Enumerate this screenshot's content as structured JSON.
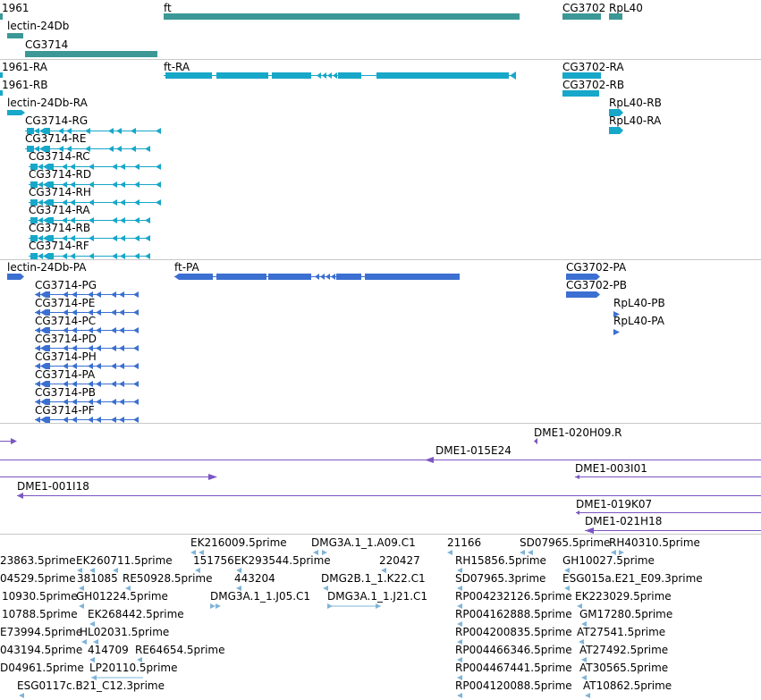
{
  "colors": {
    "gene": "#3b9896",
    "transcript": "#17a7c9",
    "protein": "#3b6fd1",
    "clone": "#7a56c2",
    "est": "#7fb4d8",
    "track_border": "#c8c8c8"
  },
  "tracks": {
    "genes": {
      "labels": [
        "1961",
        "lectin-24Db",
        "CG3714",
        "ft",
        "CG3702",
        "RpL40"
      ]
    },
    "transcripts": {
      "labels": [
        "1961-RA",
        "1961-RB",
        "lectin-24Db-RA",
        "CG3714-RG",
        "CG3714-RE",
        "CG3714-RC",
        "CG3714-RD",
        "CG3714-RH",
        "CG3714-RA",
        "CG3714-RB",
        "CG3714-RF",
        "ft-RA",
        "CG3702-RA",
        "CG3702-RB",
        "RpL40-RB",
        "RpL40-RA"
      ]
    },
    "proteins": {
      "labels": [
        "lectin-24Db-PA",
        "CG3714-PG",
        "CG3714-PE",
        "CG3714-PC",
        "CG3714-PD",
        "CG3714-PH",
        "CG3714-PA",
        "CG3714-PB",
        "CG3714-PF",
        "ft-PA",
        "CG3702-PA",
        "CG3702-PB",
        "RpL40-PB",
        "RpL40-PA"
      ]
    },
    "clones": {
      "labels": [
        "DME1-020H09.R",
        "DME1-015E24",
        "DME1-003I01",
        "DME1-001I18",
        "DME1-019K07",
        "DME1-021H18"
      ]
    },
    "ests": {
      "labels": [
        "EK216009.5prime",
        "DMG3A.1_1.A09.C1",
        "21166",
        "SD07965.5prime",
        "RH40310.5prime",
        "23863.5prime",
        "EK260711.5prime",
        "151756",
        "EK293544.5prime",
        "220427",
        "RH15856.5prime",
        "GH10027.5prime",
        "04529.5prime",
        "381085",
        "RE50928.5prime",
        "443204",
        "DMG2B.1_1.K22.C1",
        "SD07965.3prime",
        "ESG015a.E21_E09.3prime",
        "10930.5prime",
        "GH01224.5prime",
        "DMG3A.1_1.J05.C1",
        "DMG3A.1_1.J21.C1",
        "RP004232126.5prime",
        "EK223029.5prime",
        "10788.5prime",
        "EK268442.5prime",
        "RP004162888.5prime",
        "GM17280.5prime",
        "E73994.5prime",
        "HL02031.5prime",
        "RP004200835.5prime",
        "AT27541.5prime",
        "043194.5prime",
        "414709",
        "RE64654.5prime",
        "RP004466346.5prime",
        "AT27492.5prime",
        "D04961.5prime",
        "LP20110.5prime",
        "RP004467441.5prime",
        "AT30565.5prime",
        "ESG0117c.B21_C12.3prime",
        "RP004120088.5prime",
        "AT10862.5prime"
      ]
    }
  }
}
